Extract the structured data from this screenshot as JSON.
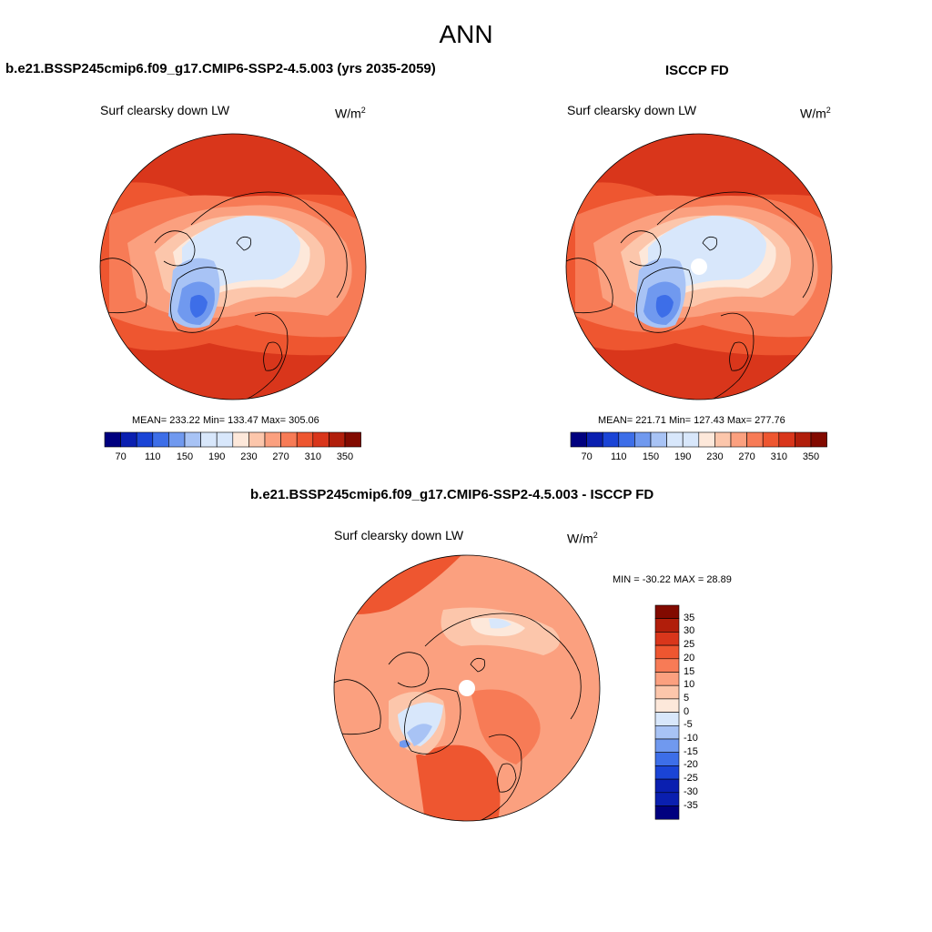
{
  "title": "ANN",
  "colors": {
    "scale11": [
      "#00007f",
      "#0a1fb0",
      "#1a44d6",
      "#3d6ee8",
      "#7099ef",
      "#a8c3f5",
      "#d8e7fb",
      "#fde8da",
      "#fcc6ab",
      "#fba07f",
      "#f77b56",
      "#ee5630",
      "#d9361b",
      "#b11e0b",
      "#820a00"
    ],
    "land": "none",
    "coast": "#000000"
  },
  "panels": [
    {
      "id": "model",
      "heading": "b.e21.BSSP245cmip6.f09_g17.CMIP6-SSP2-4.5.003 (yrs 2035-2059)",
      "variable": "Surf clearsky down LW",
      "units_base": "W/m",
      "units_exp": "2",
      "stats": "MEAN= 233.22  Min= 133.47  Max= 305.06"
    },
    {
      "id": "obs",
      "heading": "ISCCP FD",
      "variable": "Surf clearsky down LW",
      "units_base": "W/m",
      "units_exp": "2",
      "stats": "MEAN= 221.71  Min= 127.43  Max= 277.76"
    },
    {
      "id": "diff",
      "heading": "b.e21.BSSP245cmip6.f09_g17.CMIP6-SSP2-4.5.003 - ISCCP FD",
      "variable": "Surf clearsky down LW",
      "units_base": "W/m",
      "units_exp": "2",
      "stats": "MIN = -30.22 MAX =  28.89"
    }
  ],
  "colorbar_abs": {
    "ticks": [
      "70",
      "110",
      "150",
      "190",
      "230",
      "270",
      "310",
      "350"
    ]
  },
  "colorbar_diff": {
    "ticks": [
      "35",
      "30",
      "25",
      "20",
      "15",
      "10",
      "5",
      "0",
      "-5",
      "-10",
      "-15",
      "-20",
      "-25",
      "-30",
      "-35"
    ]
  }
}
